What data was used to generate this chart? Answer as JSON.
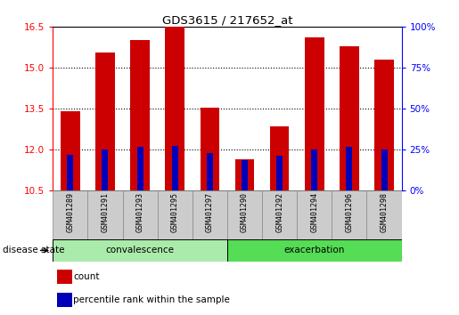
{
  "title": "GDS3615 / 217652_at",
  "samples": [
    "GSM401289",
    "GSM401291",
    "GSM401293",
    "GSM401295",
    "GSM401297",
    "GSM401290",
    "GSM401292",
    "GSM401294",
    "GSM401296",
    "GSM401298"
  ],
  "count_values": [
    13.4,
    15.55,
    16.0,
    16.5,
    13.55,
    11.65,
    12.85,
    16.1,
    15.8,
    15.3
  ],
  "percentile_values": [
    11.82,
    12.0,
    12.1,
    12.12,
    11.87,
    11.62,
    11.78,
    12.02,
    12.1,
    12.02
  ],
  "ymin": 10.5,
  "ymax": 16.5,
  "yticks_left": [
    10.5,
    12.0,
    13.5,
    15.0,
    16.5
  ],
  "yticks_right_vals": [
    0,
    25,
    50,
    75,
    100
  ],
  "bar_color": "#cc0000",
  "percentile_color": "#0000bb",
  "convalescence_color": "#aaeaaa",
  "exacerbation_color": "#55dd55",
  "xlabel_area_color": "#cccccc",
  "convalescence_label": "convalescence",
  "exacerbation_label": "exacerbation",
  "disease_state_label": "disease state",
  "legend_count_label": "count",
  "legend_percentile_label": "percentile rank within the sample",
  "bar_width": 0.55,
  "percentile_bar_width": 0.18
}
